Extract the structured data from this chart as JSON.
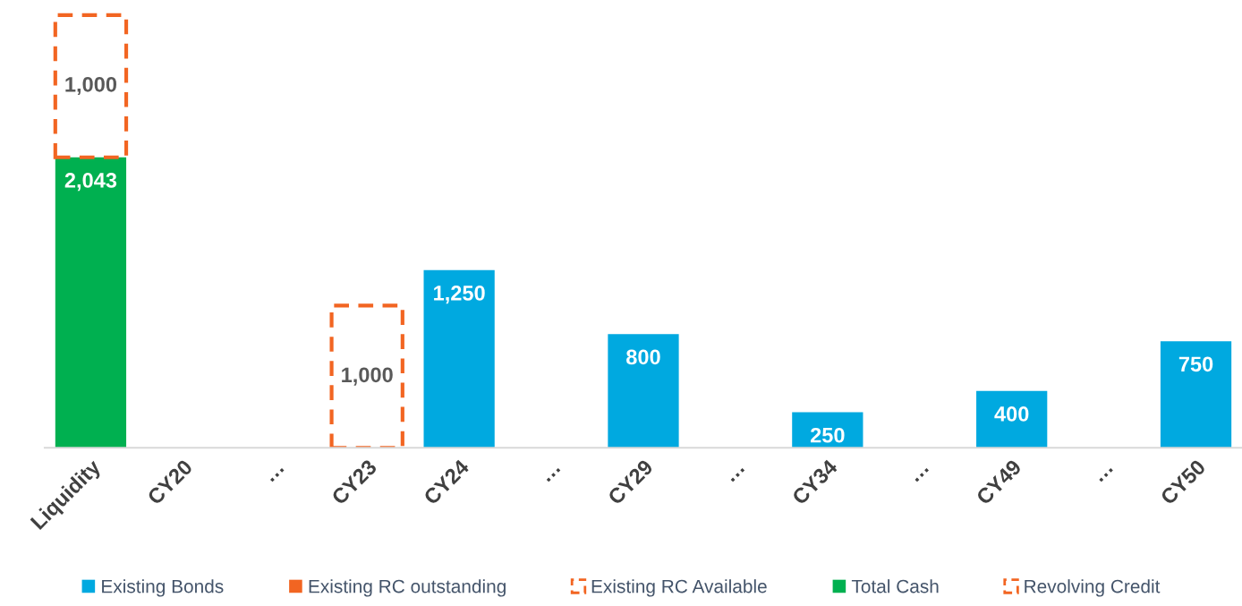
{
  "chart_data": {
    "type": "bar",
    "stacked": true,
    "legend": "bottom",
    "tick_labels": "x",
    "grid": false,
    "categories": [
      "Liquidity",
      "CY20",
      "…",
      "CY23",
      "CY24",
      "…",
      "CY29",
      "…",
      "CY34",
      "…",
      "CY49",
      "…",
      "CY50"
    ],
    "series": [
      {
        "name": "Existing Bonds",
        "color": "#00a9e0",
        "values": [
          null,
          null,
          null,
          null,
          1250,
          null,
          800,
          null,
          250,
          null,
          400,
          null,
          750
        ],
        "value_labels": [
          null,
          null,
          null,
          null,
          "1,250",
          null,
          "800",
          null,
          "250",
          null,
          "400",
          null,
          "750"
        ]
      },
      {
        "name": "Existing RC outstanding",
        "color": "#f26522",
        "values": [
          null,
          null,
          null,
          null,
          null,
          null,
          null,
          null,
          null,
          null,
          null,
          null,
          null
        ]
      },
      {
        "name": "Existing RC Available",
        "color": "#f26522",
        "line_style": "dashed",
        "values": [
          null,
          null,
          null,
          1000,
          null,
          null,
          null,
          null,
          null,
          null,
          null,
          null,
          null
        ],
        "value_labels": [
          null,
          null,
          null,
          "1,000",
          null,
          null,
          null,
          null,
          null,
          null,
          null,
          null,
          null
        ]
      },
      {
        "name": "Total Cash",
        "color": "#00b050",
        "values": [
          2043,
          null,
          null,
          null,
          null,
          null,
          null,
          null,
          null,
          null,
          null,
          null,
          null
        ],
        "value_labels": [
          "2,043",
          null,
          null,
          null,
          null,
          null,
          null,
          null,
          null,
          null,
          null,
          null,
          null
        ]
      },
      {
        "name": "Revolving Credit",
        "color": "#f26522",
        "line_style": "dashed",
        "values": [
          1000,
          null,
          null,
          null,
          null,
          null,
          null,
          null,
          null,
          null,
          null,
          null,
          null
        ],
        "value_labels": [
          "1,000",
          null,
          null,
          null,
          null,
          null,
          null,
          null,
          null,
          null,
          null,
          null,
          null
        ]
      }
    ]
  }
}
